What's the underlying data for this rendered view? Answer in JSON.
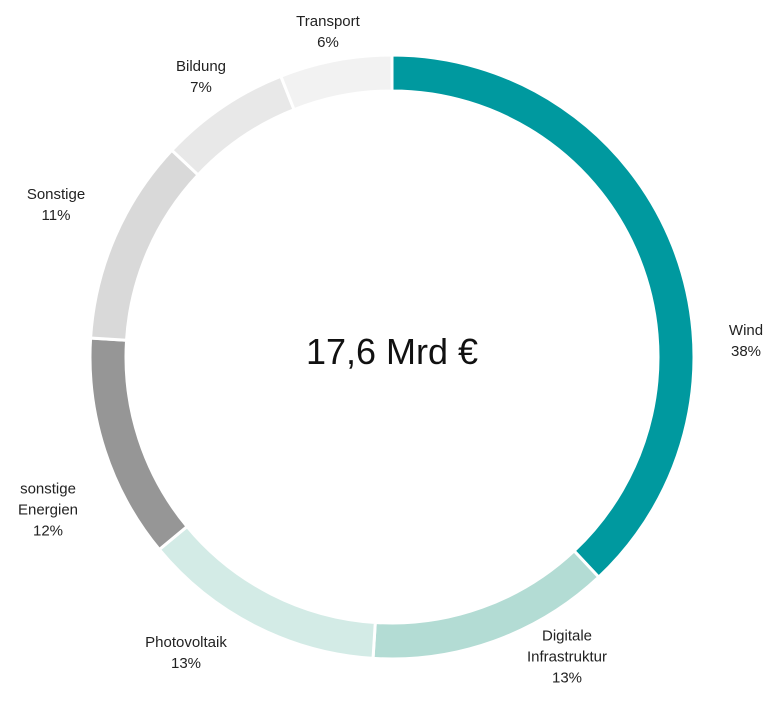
{
  "chart_data": {
    "type": "donut",
    "center_label": "17,6 Mrd €",
    "categories": [
      "Wind",
      "Digitale Infrastruktur",
      "Photovoltaik",
      "sonstige Energien",
      "Sonstige",
      "Bildung",
      "Transport"
    ],
    "values": [
      38,
      13,
      13,
      12,
      11,
      7,
      6
    ],
    "value_labels": [
      "38%",
      "13%",
      "13%",
      "12%",
      "11%",
      "7%",
      "6%"
    ],
    "colors": [
      "#00999f",
      "#b3dcd4",
      "#d3ebe6",
      "#969696",
      "#d9d9d9",
      "#e8e8e8",
      "#f2f2f2"
    ]
  }
}
